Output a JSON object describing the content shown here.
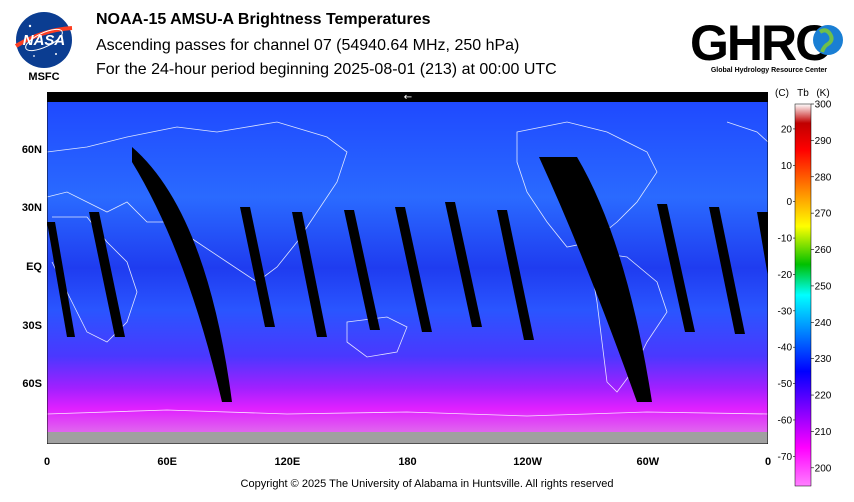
{
  "header": {
    "title": "NOAA-15 AMSU-A Brightness Temperatures",
    "subtitle": "Ascending passes for channel 07 (54940.64 MHz, 250 hPa)",
    "period": "For the 24-hour period beginning 2025-08-01 (213) at 00:00 UTC"
  },
  "logos": {
    "nasa_text": "NASA",
    "nasa_caption": "MSFC",
    "ghrc_text": "GHRC",
    "ghrc_caption": "Global Hydrology Resource Center"
  },
  "map": {
    "x_ticks": [
      {
        "lon": 0,
        "label": "0"
      },
      {
        "lon": 60,
        "label": "60E"
      },
      {
        "lon": 120,
        "label": "120E"
      },
      {
        "lon": 180,
        "label": "180"
      },
      {
        "lon": 240,
        "label": "120W"
      },
      {
        "lon": 300,
        "label": "60W"
      },
      {
        "lon": 360,
        "label": "0"
      }
    ],
    "y_ticks": [
      {
        "lat": 60,
        "label": "60N"
      },
      {
        "lat": 30,
        "label": "30N"
      },
      {
        "lat": 0,
        "label": "EQ"
      },
      {
        "lat": -30,
        "label": "30S"
      },
      {
        "lat": -60,
        "label": "60S"
      }
    ],
    "lat_range": [
      -90,
      90
    ],
    "lon_range": [
      0,
      360
    ],
    "date_line_arrow": "←"
  },
  "colorbar": {
    "header_c": "(C)",
    "header_tb": "Tb",
    "header_k": "(K)",
    "kelvin_range": [
      195,
      300
    ],
    "celsius_labels": [
      "20",
      "10",
      "0",
      "-10",
      "-20",
      "-30",
      "-40",
      "-50",
      "-60",
      "-70"
    ],
    "kelvin_labels": [
      "300",
      "290",
      "280",
      "270",
      "260",
      "250",
      "240",
      "230",
      "220",
      "210",
      "200"
    ],
    "colors": [
      "#ff80ff",
      "#ff00ff",
      "#8000ff",
      "#0000ff",
      "#0080ff",
      "#00ffff",
      "#00c000",
      "#ffff00",
      "#ff8000",
      "#ff0000",
      "#c00000",
      "#ffffff"
    ]
  },
  "footer": {
    "copyright": "Copyright © 2025 The University of Alabama in Huntsville.  All rights reserved"
  }
}
